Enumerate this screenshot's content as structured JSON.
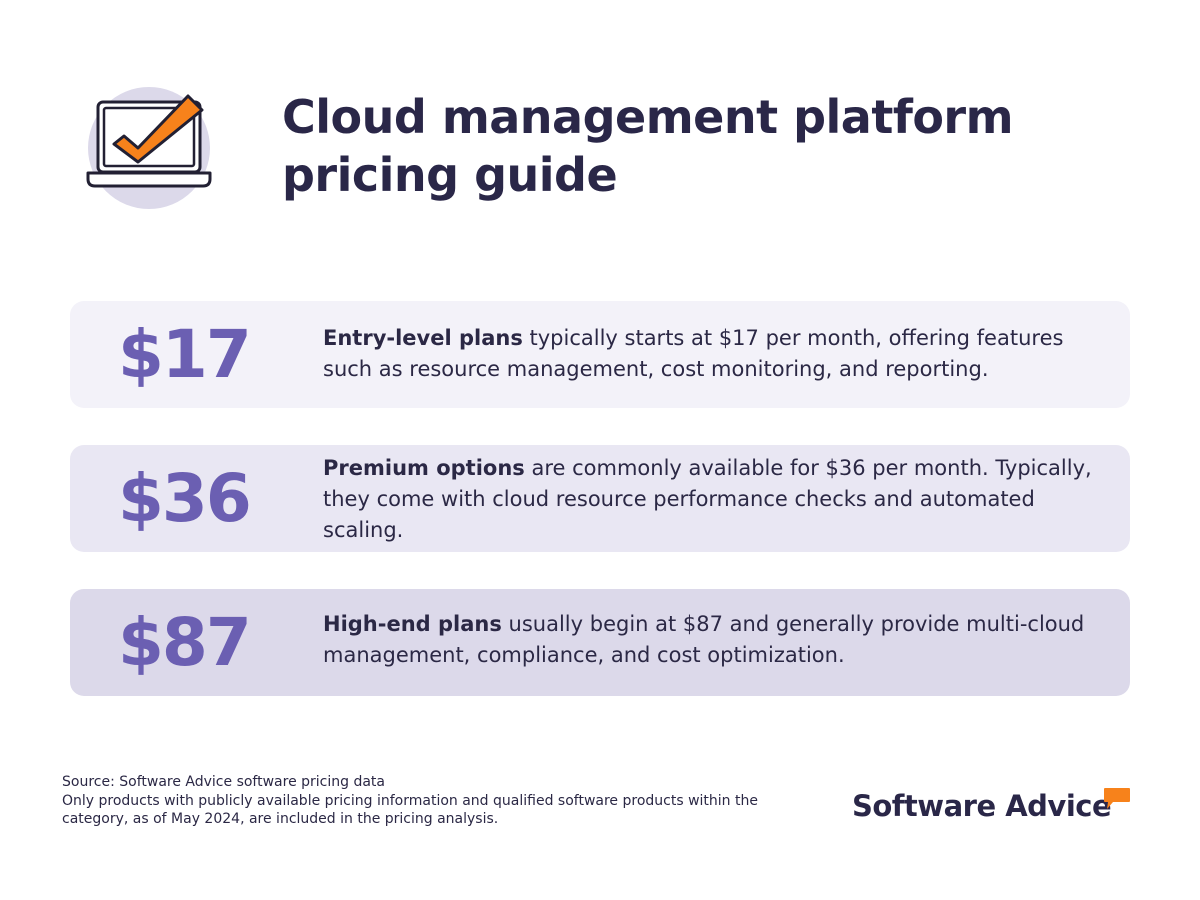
{
  "header": {
    "title_line1": "Cloud management platform",
    "title_line2": "pricing guide",
    "icon": "laptop-checkmark-icon"
  },
  "plans": [
    {
      "price": "$17",
      "bold": "Entry-level plans",
      "text": " typically starts at $17 per month, offering features such as resource management, cost monitoring, and reporting."
    },
    {
      "price": "$36",
      "bold": "Premium options",
      "text": " are commonly available for $36 per month. Typically, they come with cloud resource performance checks and automated scaling."
    },
    {
      "price": "$87",
      "bold": "High-end plans",
      "text": " usually begin at $87 and generally provide multi-cloud management, compliance, and cost optimization."
    }
  ],
  "footer": {
    "source": "Source: Software Advice software pricing data",
    "note": "Only products with publicly available pricing information and qualified software products within the category, as of May 2024, are included in the pricing analysis."
  },
  "brand": {
    "name": "Software Advice",
    "bubble_icon": "speech-bubble-icon"
  },
  "colors": {
    "accent_purple": "#6b5fb2",
    "accent_orange": "#f7821b",
    "text_dark": "#2a2748"
  }
}
